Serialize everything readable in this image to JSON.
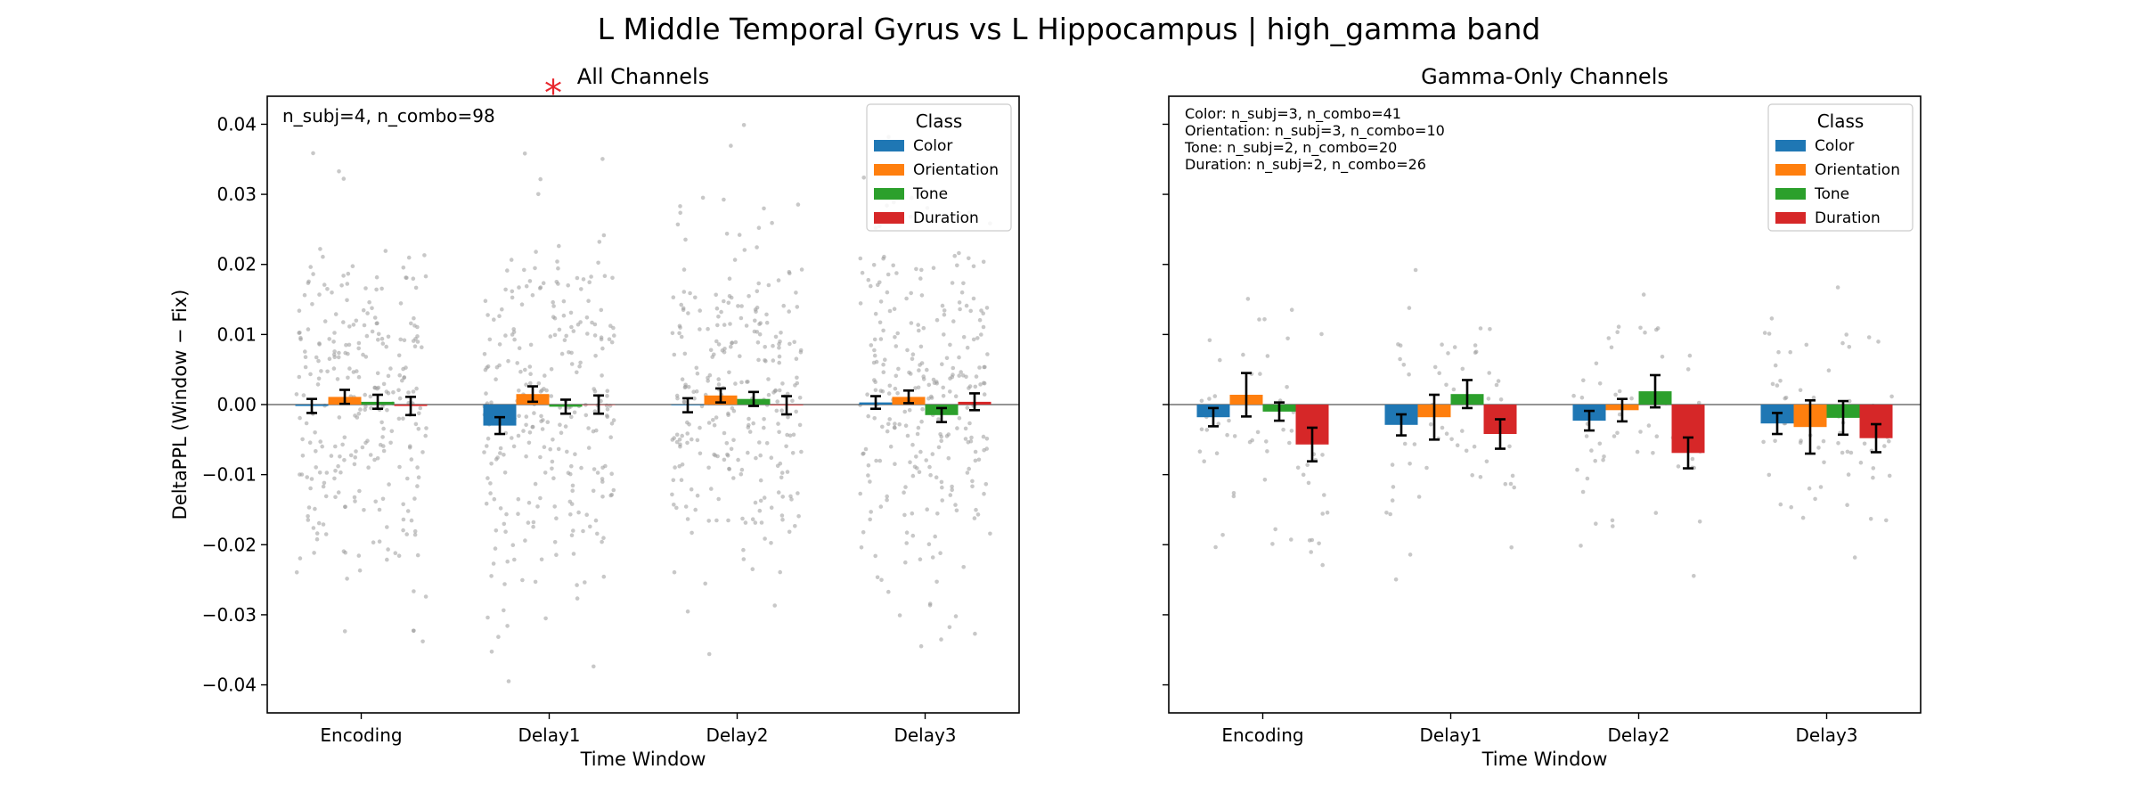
{
  "figure": {
    "suptitle": "L Middle Temporal Gyrus vs L Hippocampus  |  high_gamma band"
  },
  "legend": {
    "title": "Class",
    "entries": [
      {
        "name": "Color",
        "color": "#1f77b4"
      },
      {
        "name": "Orientation",
        "color": "#ff7f0e"
      },
      {
        "name": "Tone",
        "color": "#2ca02c"
      },
      {
        "name": "Duration",
        "color": "#d62728"
      }
    ]
  },
  "chart_data": [
    {
      "type": "bar",
      "title": "All Channels",
      "title_marker": "*",
      "xlabel": "Time Window",
      "ylabel": "DeltaPPL (Window − Fix)",
      "ylim": [
        -0.044,
        0.044
      ],
      "yticks": [
        -0.04,
        -0.03,
        -0.02,
        -0.01,
        0.0,
        0.01,
        0.02,
        0.03,
        0.04
      ],
      "ytick_labels": [
        "−0.04",
        "−0.03",
        "−0.02",
        "−0.01",
        "0.00",
        "0.01",
        "0.02",
        "0.03",
        "0.04"
      ],
      "categories": [
        "Encoding",
        "Delay1",
        "Delay2",
        "Delay3"
      ],
      "annotations": [
        "n_subj=4, n_combo=98"
      ],
      "legend_location": "upper right",
      "series": [
        {
          "name": "Color",
          "values": [
            -0.0002,
            -0.003,
            -0.0001,
            0.0003
          ],
          "err": [
            0.001,
            0.0012,
            0.001,
            0.0009
          ]
        },
        {
          "name": "Orientation",
          "values": [
            0.0011,
            0.0015,
            0.0013,
            0.0011
          ],
          "err": [
            0.001,
            0.0011,
            0.001,
            0.0009
          ]
        },
        {
          "name": "Tone",
          "values": [
            0.0004,
            -0.0003,
            0.0008,
            -0.0015
          ],
          "err": [
            0.001,
            0.001,
            0.001,
            0.001
          ]
        },
        {
          "name": "Duration",
          "values": [
            -0.0002,
            0.0,
            -0.0001,
            0.0004
          ],
          "err": [
            0.0013,
            0.0013,
            0.0013,
            0.0012
          ]
        }
      ]
    },
    {
      "type": "bar",
      "title": "Gamma-Only Channels",
      "xlabel": "Time Window",
      "ylim": [
        -0.044,
        0.044
      ],
      "categories": [
        "Encoding",
        "Delay1",
        "Delay2",
        "Delay3"
      ],
      "annotations": [
        "Color: n_subj=3, n_combo=41",
        "Orientation: n_subj=3, n_combo=10",
        "Tone: n_subj=2, n_combo=20",
        "Duration: n_subj=2, n_combo=26"
      ],
      "legend_location": "upper right",
      "series": [
        {
          "name": "Color",
          "values": [
            -0.0018,
            -0.0029,
            -0.0023,
            -0.0027
          ],
          "err": [
            0.0013,
            0.0015,
            0.0014,
            0.0015
          ]
        },
        {
          "name": "Orientation",
          "values": [
            0.0014,
            -0.0018,
            -0.0008,
            -0.0032
          ],
          "err": [
            0.0031,
            0.0032,
            0.0016,
            0.0038
          ]
        },
        {
          "name": "Tone",
          "values": [
            -0.001,
            0.0015,
            0.0019,
            -0.0019
          ],
          "err": [
            0.0013,
            0.002,
            0.0023,
            0.0024
          ]
        },
        {
          "name": "Duration",
          "values": [
            -0.0057,
            -0.0042,
            -0.0069,
            -0.0048
          ],
          "err": [
            0.0024,
            0.0021,
            0.0022,
            0.002
          ]
        }
      ]
    }
  ]
}
